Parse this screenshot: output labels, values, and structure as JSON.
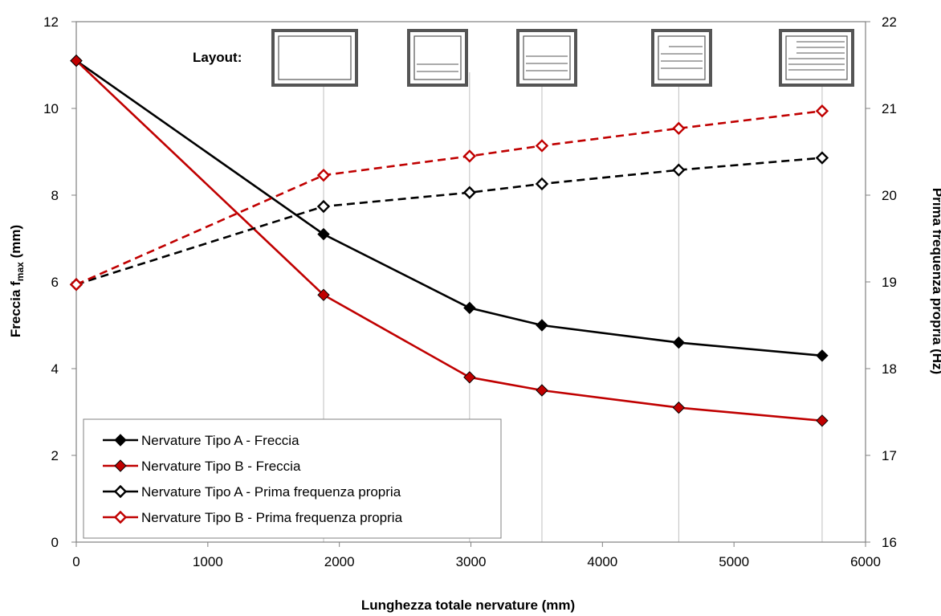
{
  "chart_data": {
    "type": "line",
    "xlabel": "Lunghezza totale nervature (mm)",
    "ylabel_main": "Freccia f",
    "ylabel_sub": "max",
    "ylabel_unit": " (mm)",
    "y2label": "Prima frequenza propria (Hz)",
    "xlim": [
      0,
      6000
    ],
    "ylim": [
      0,
      12
    ],
    "y2lim": [
      16,
      22
    ],
    "x_ticks": [
      "0",
      "1000",
      "2000",
      "3000",
      "4000",
      "5000",
      "6000"
    ],
    "y_ticks": [
      "0",
      "2",
      "4",
      "6",
      "8",
      "10",
      "12"
    ],
    "y2_ticks": [
      "16",
      "17",
      "18",
      "19",
      "20",
      "21",
      "22"
    ],
    "x_gridlines": [
      1880,
      2990,
      3540,
      4580,
      5670
    ],
    "layout_label": "Layout:",
    "layout_icons": [
      {
        "lines": 0
      },
      {
        "lines": 2
      },
      {
        "lines": 3
      },
      {
        "lines": 4
      },
      {
        "lines": 6
      }
    ],
    "legend_position": "bottom-left",
    "series": [
      {
        "name": "Nervature Tipo A - Freccia",
        "axis": "left",
        "color": "#000000",
        "dashed": false,
        "filled": true,
        "x": [
          0,
          1880,
          2990,
          3540,
          4580,
          5670
        ],
        "y": [
          11.1,
          7.1,
          5.4,
          5.0,
          4.6,
          4.3
        ]
      },
      {
        "name": "Nervature Tipo B - Freccia",
        "axis": "left",
        "color": "#c00000",
        "dashed": false,
        "filled": true,
        "x": [
          0,
          1880,
          2990,
          3540,
          4580,
          5670
        ],
        "y": [
          11.1,
          5.7,
          3.8,
          3.5,
          3.1,
          2.8
        ]
      },
      {
        "name": "Nervature Tipo A - Prima frequenza propria",
        "axis": "right",
        "color": "#000000",
        "dashed": true,
        "filled": false,
        "x": [
          0,
          1880,
          2990,
          3540,
          4580,
          5670
        ],
        "y": [
          18.97,
          19.87,
          20.03,
          20.13,
          20.29,
          20.43
        ]
      },
      {
        "name": "Nervature Tipo B - Prima frequenza propria",
        "axis": "right",
        "color": "#c00000",
        "dashed": true,
        "filled": false,
        "x": [
          0,
          1880,
          2990,
          3540,
          4580,
          5670
        ],
        "y": [
          18.97,
          20.23,
          20.45,
          20.57,
          20.77,
          20.97
        ]
      }
    ]
  }
}
